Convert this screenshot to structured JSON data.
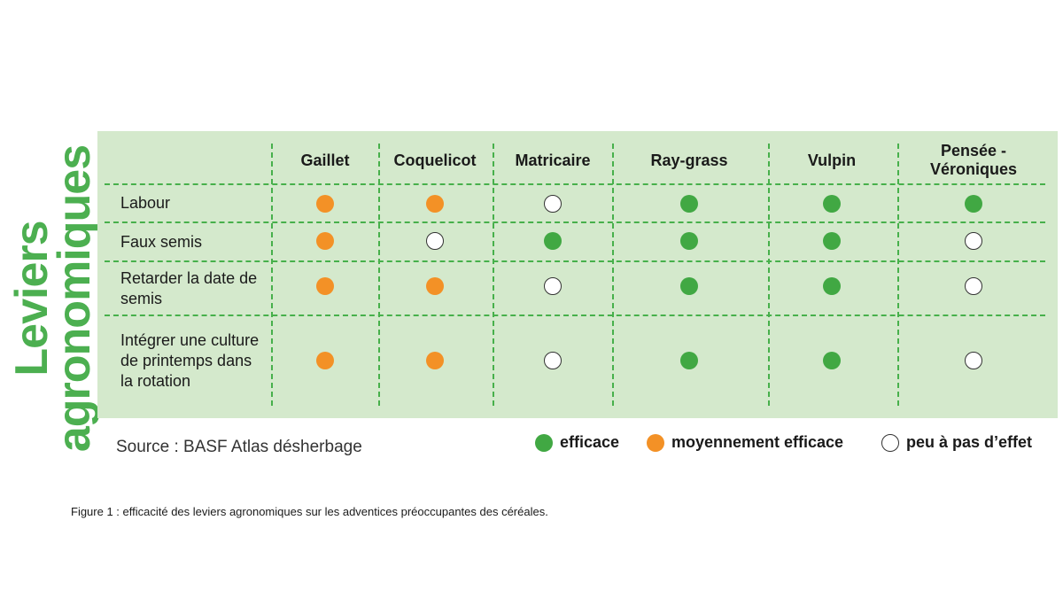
{
  "side_title": [
    "Leviers",
    "agronomiques"
  ],
  "chart_data": {
    "type": "table",
    "columns": [
      "Gaillet",
      "Coquelicot",
      "Matricaire",
      "Ray-grass",
      "Vulpin",
      "Pensée - Véroniques"
    ],
    "rows": [
      {
        "label": "Labour",
        "values": [
          "moyen",
          "moyen",
          "peu",
          "efficace",
          "efficace",
          "efficace"
        ]
      },
      {
        "label": "Faux semis",
        "values": [
          "moyen",
          "peu",
          "efficace",
          "efficace",
          "efficace",
          "peu"
        ]
      },
      {
        "label": "Retarder la date de semis",
        "values": [
          "moyen",
          "moyen",
          "peu",
          "efficace",
          "efficace",
          "peu"
        ]
      },
      {
        "label": "Intégrer une culture de printemps dans la rotation",
        "values": [
          "moyen",
          "moyen",
          "peu",
          "efficace",
          "efficace",
          "peu"
        ]
      }
    ],
    "legend": [
      {
        "key": "efficace",
        "label": "efficace",
        "color": "#41a843"
      },
      {
        "key": "moyen",
        "label": "moyennement efficace",
        "color": "#f39126"
      },
      {
        "key": "peu",
        "label": "peu à pas d’effet",
        "color": "#ffffff"
      }
    ]
  },
  "source": "Source : BASF Atlas désherbage",
  "caption": "Figure 1 : efficacité des leviers agronomiques sur les adventices préoccupantes des céréales."
}
